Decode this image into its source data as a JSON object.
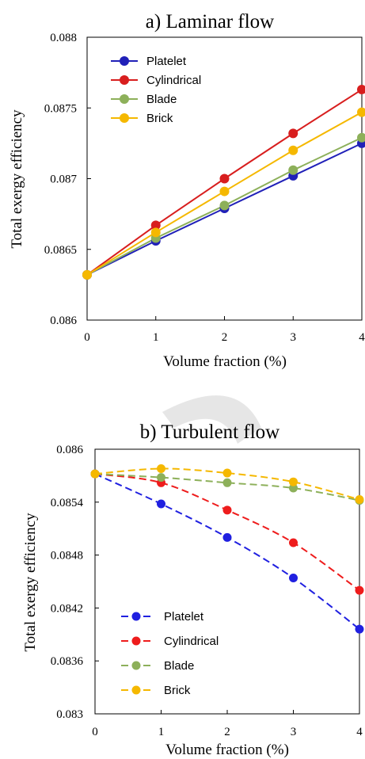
{
  "chart_data": [
    {
      "type": "line",
      "title": "a) Laminar flow",
      "xlabel": "Volume fraction (%)",
      "ylabel": "Total exergy efficiency",
      "x": [
        0,
        1,
        2,
        3,
        4
      ],
      "x_ticks": [
        "0",
        "1",
        "2",
        "3",
        "4"
      ],
      "y_ticks": [
        "0.086",
        "0.0865",
        "0.087",
        "0.0875",
        "0.088"
      ],
      "xlim": [
        0,
        4
      ],
      "ylim": [
        0.086,
        0.088
      ],
      "line_style": "solid",
      "grid": false,
      "legend_position": "top-left",
      "series": [
        {
          "name": "Platelet",
          "color": "#2020b8",
          "values": [
            0.08632,
            0.08656,
            0.08679,
            0.08702,
            0.08725
          ]
        },
        {
          "name": "Cylindrical",
          "color": "#d81e1e",
          "values": [
            0.08632,
            0.08667,
            0.087,
            0.08732,
            0.08763
          ]
        },
        {
          "name": "Blade",
          "color": "#8db05a",
          "values": [
            0.08632,
            0.08658,
            0.08681,
            0.08706,
            0.08729
          ]
        },
        {
          "name": "Brick",
          "color": "#f5b800",
          "values": [
            0.08632,
            0.08662,
            0.08691,
            0.0872,
            0.08747
          ]
        }
      ]
    },
    {
      "type": "line",
      "title": "b) Turbulent flow",
      "xlabel": "Volume fraction (%)",
      "ylabel": "Total exergy efficiency",
      "x": [
        0,
        1,
        2,
        3,
        4
      ],
      "x_ticks": [
        "0",
        "1",
        "2",
        "3",
        "4"
      ],
      "y_ticks": [
        "0.083",
        "0.0836",
        "0.0842",
        "0.0848",
        "0.0854",
        "0.086"
      ],
      "xlim": [
        0,
        4
      ],
      "ylim": [
        0.083,
        0.086
      ],
      "line_style": "dashed",
      "grid": false,
      "legend_position": "bottom-left",
      "series": [
        {
          "name": "Platelet",
          "color": "#2020e0",
          "values": [
            0.08572,
            0.08538,
            0.085,
            0.08454,
            0.08396
          ]
        },
        {
          "name": "Cylindrical",
          "color": "#ee1c1c",
          "values": [
            0.08572,
            0.08562,
            0.08531,
            0.08494,
            0.0844
          ]
        },
        {
          "name": "Blade",
          "color": "#8db05a",
          "values": [
            0.08572,
            0.08568,
            0.08562,
            0.08556,
            0.08542
          ]
        },
        {
          "name": "Brick",
          "color": "#f5b800",
          "values": [
            0.08572,
            0.08578,
            0.08573,
            0.08563,
            0.08543
          ]
        }
      ]
    }
  ]
}
